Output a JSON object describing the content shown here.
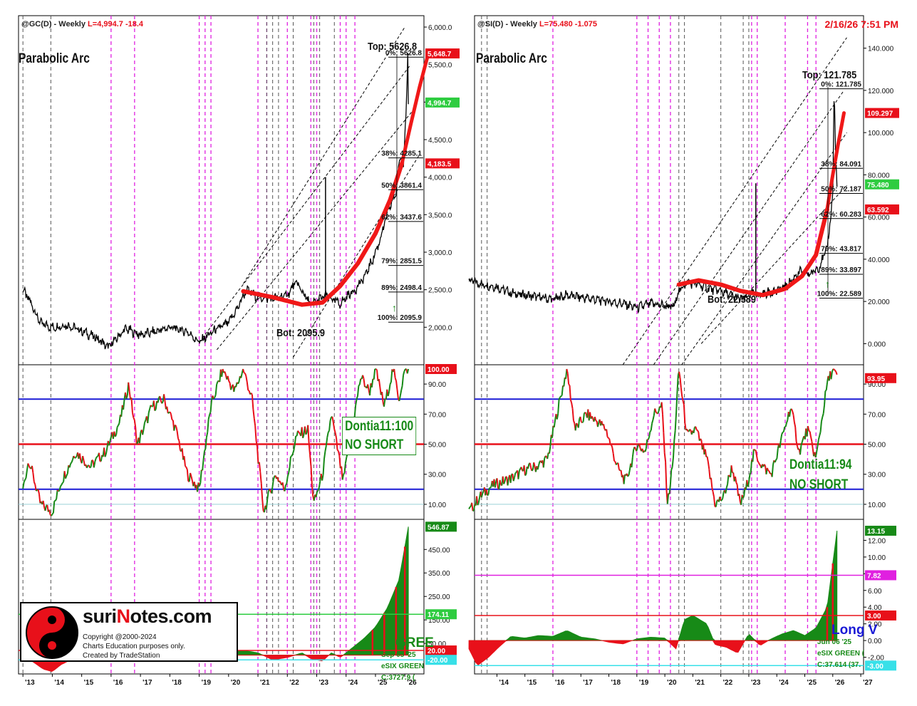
{
  "colors": {
    "up": "#178a17",
    "down": "#e8101a",
    "blue_line": "#1a1ad6",
    "pink_marker": "#e020e0",
    "gray_marker": "#555555",
    "arc": "#f01818"
  },
  "left": {
    "header": {
      "symbol": "@GC(D) - Weekly",
      "last": "L=4,994.7",
      "change": "-18.4"
    },
    "title": "Parabolic Arc",
    "top_label": "Top: 5626.8",
    "bot_label": "Bot: 2095.9",
    "oscillator_label": "Dontia11:100",
    "oscillator_note": "NO SHORT",
    "legend_lines": [
      "GREE",
      "Sep 05 '25",
      "eSIX GREEN",
      "C:3727.9 ("
    ]
  },
  "right": {
    "header": {
      "symbol": "@SI(D) - Weekly",
      "last": "L=75.480",
      "change": "-1.075"
    },
    "timestamp": "2/16/26 7:51 PM",
    "title": "Parabolic Arc",
    "top_label": "Top: 121.785",
    "bot_label": "Bot: 22.589",
    "oscillator_label": "Dontia11:94",
    "oscillator_note": "NO SHORT",
    "legend_lines": [
      "Long V",
      "Jun 06 '25",
      "eSIX GREEN (",
      "C:37.614 (37."
    ]
  },
  "logo": {
    "brand_prefix": "suri",
    "brand_accent": "N",
    "brand_suffix": "otes.com",
    "lines": [
      "Copyright @2000-2024",
      "Charts Education purposes only.",
      "Created by TradeStation"
    ]
  },
  "chart_data": [
    {
      "name": "Gold price pane",
      "type": "line",
      "ylim": [
        1500,
        6000
      ],
      "x_tick_labels": [
        "'13",
        "'14",
        "'15",
        "'16",
        "'17",
        "'18",
        "'19",
        "'20",
        "'21",
        "'22",
        "'23",
        "'24",
        "'25",
        "'26"
      ],
      "y_ticks": [
        "6,000.0",
        "5,500.0",
        "5,000.0",
        "4,500.0",
        "4,000.0",
        "3,500.0",
        "3,000.0",
        "2,500.0",
        "2,000.0"
      ],
      "price_tags": [
        {
          "label": "5,648.7",
          "value": 5648.7,
          "color": "#e8101a"
        },
        {
          "label": "4,994.7",
          "value": 4994.7,
          "color": "#2ecc40"
        },
        {
          "label": "4,183.5",
          "value": 4183.5,
          "color": "#e8101a"
        }
      ],
      "fib_levels": [
        {
          "label": "0%: 5626.8",
          "value": 5626.8
        },
        {
          "label": "38%: 4285.1",
          "value": 4285.1
        },
        {
          "label": "50%: 3861.4",
          "value": 3861.4
        },
        {
          "label": "62%: 3437.6",
          "value": 3437.6
        },
        {
          "label": "79%: 2851.5",
          "value": 2851.5
        },
        {
          "label": "89%: 2498.4",
          "value": 2498.4
        },
        {
          "label": "100%: 2095.9",
          "value": 2095.9
        }
      ],
      "price_points": [
        [
          2013.0,
          2500
        ],
        [
          2013.3,
          2300
        ],
        [
          2013.6,
          2050
        ],
        [
          2014.0,
          2000
        ],
        [
          2014.5,
          2030
        ],
        [
          2015.0,
          1950
        ],
        [
          2015.5,
          1860
        ],
        [
          2015.9,
          1730
        ],
        [
          2016.5,
          1980
        ],
        [
          2017.0,
          1900
        ],
        [
          2017.6,
          1950
        ],
        [
          2018.0,
          2000
        ],
        [
          2018.6,
          1940
        ],
        [
          2019.0,
          1800
        ],
        [
          2019.5,
          1950
        ],
        [
          2020.0,
          2060
        ],
        [
          2020.3,
          2250
        ],
        [
          2020.6,
          2500
        ],
        [
          2021.0,
          2400
        ],
        [
          2021.5,
          2380
        ],
        [
          2022.0,
          2430
        ],
        [
          2022.3,
          2600
        ],
        [
          2022.8,
          2300
        ],
        [
          2023.0,
          2350
        ],
        [
          2023.3,
          2420
        ],
        [
          2023.8,
          2310
        ],
        [
          2024.0,
          2400
        ],
        [
          2024.3,
          2500
        ],
        [
          2024.6,
          2650
        ],
        [
          2024.9,
          2900
        ],
        [
          2025.1,
          3100
        ],
        [
          2025.4,
          3500
        ],
        [
          2025.7,
          3800
        ],
        [
          2025.85,
          4300
        ],
        [
          2025.95,
          4150
        ],
        [
          2026.05,
          5000
        ],
        [
          2026.1,
          5626.8
        ],
        [
          2026.12,
          4995
        ]
      ],
      "arc_points": [
        [
          2020.5,
          2480
        ],
        [
          2021.5,
          2400
        ],
        [
          2022.5,
          2300
        ],
        [
          2023.2,
          2330
        ],
        [
          2023.8,
          2550
        ],
        [
          2024.4,
          2850
        ],
        [
          2025.0,
          3250
        ],
        [
          2025.5,
          3700
        ],
        [
          2025.9,
          4183.5
        ]
      ],
      "arc_projection": [
        [
          2025.9,
          4183.5
        ],
        [
          2026.2,
          4700
        ],
        [
          2026.5,
          5200
        ],
        [
          2026.8,
          5648.7
        ]
      ],
      "spike": [
        2023.3,
        2350,
        4000
      ]
    },
    {
      "name": "Gold Dontia11 oscillator",
      "type": "line",
      "ylim": [
        0,
        100
      ],
      "y_ticks": [
        "90.00",
        "70.00",
        "50.00",
        "30.00",
        "10.00"
      ],
      "levels": [
        80,
        50,
        20,
        10
      ],
      "last_tag": {
        "label": "100.00",
        "value": 100
      },
      "values": [
        [
          2013.0,
          20
        ],
        [
          2013.2,
          40
        ],
        [
          2013.6,
          10
        ],
        [
          2014.0,
          5
        ],
        [
          2014.3,
          25
        ],
        [
          2014.8,
          45
        ],
        [
          2015.3,
          35
        ],
        [
          2015.8,
          45
        ],
        [
          2016.3,
          65
        ],
        [
          2016.6,
          90
        ],
        [
          2016.9,
          50
        ],
        [
          2017.4,
          75
        ],
        [
          2017.8,
          80
        ],
        [
          2018.2,
          60
        ],
        [
          2018.6,
          30
        ],
        [
          2019.0,
          20
        ],
        [
          2019.4,
          75
        ],
        [
          2019.8,
          100
        ],
        [
          2020.2,
          85
        ],
        [
          2020.5,
          100
        ],
        [
          2020.8,
          80
        ],
        [
          2021.2,
          5
        ],
        [
          2021.6,
          30
        ],
        [
          2021.9,
          20
        ],
        [
          2022.3,
          55
        ],
        [
          2022.7,
          60
        ],
        [
          2022.9,
          10
        ],
        [
          2023.2,
          30
        ],
        [
          2023.5,
          70
        ],
        [
          2023.9,
          25
        ],
        [
          2024.2,
          60
        ],
        [
          2024.5,
          95
        ],
        [
          2024.8,
          85
        ],
        [
          2025.0,
          100
        ],
        [
          2025.3,
          75
        ],
        [
          2025.6,
          100
        ],
        [
          2025.8,
          80
        ],
        [
          2026.0,
          100
        ],
        [
          2026.12,
          100
        ]
      ]
    },
    {
      "name": "Gold histogram",
      "type": "area",
      "ylim": [
        -80,
        560
      ],
      "y_ticks": [
        "450.00",
        "350.00",
        "250.00",
        "150.00",
        "50.00"
      ],
      "tags": [
        {
          "label": "546.87",
          "value": 546.87,
          "color": "#178a17"
        },
        {
          "label": "174.11",
          "value": 174.11,
          "color": "#2ecc40"
        },
        {
          "label": "20.00",
          "value": 20,
          "color": "#e8101a"
        },
        {
          "label": "-20.00",
          "value": -20,
          "color": "#38e0e8"
        }
      ],
      "values": [
        [
          2013.0,
          -5
        ],
        [
          2013.3,
          -25
        ],
        [
          2013.7,
          -60
        ],
        [
          2014.0,
          -70
        ],
        [
          2014.3,
          -40
        ],
        [
          2014.8,
          -10
        ],
        [
          2015.5,
          -5
        ],
        [
          2016.0,
          5
        ],
        [
          2016.5,
          10
        ],
        [
          2017.0,
          8
        ],
        [
          2017.5,
          4
        ],
        [
          2018.0,
          -3
        ],
        [
          2018.5,
          -8
        ],
        [
          2019.0,
          -2
        ],
        [
          2019.5,
          6
        ],
        [
          2020.0,
          15
        ],
        [
          2020.5,
          20
        ],
        [
          2021.0,
          10
        ],
        [
          2021.5,
          -20
        ],
        [
          2022.0,
          -10
        ],
        [
          2022.5,
          10
        ],
        [
          2022.8,
          -15
        ],
        [
          2023.2,
          -25
        ],
        [
          2023.5,
          10
        ],
        [
          2023.8,
          -10
        ],
        [
          2024.2,
          30
        ],
        [
          2024.6,
          70
        ],
        [
          2025.0,
          120
        ],
        [
          2025.4,
          200
        ],
        [
          2025.8,
          320
        ],
        [
          2026.12,
          546.87
        ]
      ]
    },
    {
      "name": "Silver price pane",
      "type": "line",
      "ylim": [
        -10,
        150
      ],
      "x_tick_labels": [
        "'14",
        "'15",
        "'16",
        "'17",
        "'18",
        "'19",
        "'20",
        "'21",
        "'22",
        "'23",
        "'24",
        "'25",
        "'26",
        "'27"
      ],
      "y_ticks": [
        "140.000",
        "120.000",
        "100.000",
        "80.000",
        "60.000",
        "40.000",
        "20.000",
        "0.000"
      ],
      "price_tags": [
        {
          "label": "109.297",
          "value": 109.297,
          "color": "#e8101a"
        },
        {
          "label": "75.480",
          "value": 75.48,
          "color": "#2ecc40"
        },
        {
          "label": "63.592",
          "value": 63.592,
          "color": "#e8101a"
        }
      ],
      "fib_levels": [
        {
          "label": "0%: 121.785",
          "value": 121.785
        },
        {
          "label": "38%: 84.091",
          "value": 84.091
        },
        {
          "label": "50%: 72.187",
          "value": 72.187
        },
        {
          "label": "62%: 60.283",
          "value": 60.283
        },
        {
          "label": "79%: 43.817",
          "value": 43.817
        },
        {
          "label": "89%: 33.897",
          "value": 33.897
        },
        {
          "label": "100%: 22.589",
          "value": 22.589
        }
      ],
      "price_points": [
        [
          2013.0,
          30
        ],
        [
          2013.5,
          28
        ],
        [
          2014.0,
          27
        ],
        [
          2014.5,
          24
        ],
        [
          2015.0,
          23
        ],
        [
          2015.5,
          22
        ],
        [
          2016.0,
          21
        ],
        [
          2016.5,
          23
        ],
        [
          2017.0,
          22
        ],
        [
          2017.5,
          21
        ],
        [
          2018.0,
          20
        ],
        [
          2018.5,
          19
        ],
        [
          2019.0,
          17
        ],
        [
          2019.5,
          19
        ],
        [
          2020.0,
          18
        ],
        [
          2020.3,
          17
        ],
        [
          2020.5,
          25
        ],
        [
          2020.8,
          29
        ],
        [
          2021.2,
          28
        ],
        [
          2021.6,
          26
        ],
        [
          2022.0,
          25
        ],
        [
          2022.5,
          22
        ],
        [
          2022.8,
          21
        ],
        [
          2023.0,
          24
        ],
        [
          2023.3,
          23
        ],
        [
          2023.6,
          24
        ],
        [
          2024.0,
          25
        ],
        [
          2024.4,
          28
        ],
        [
          2024.8,
          34
        ],
        [
          2025.2,
          33
        ],
        [
          2025.5,
          36
        ],
        [
          2025.8,
          45
        ],
        [
          2026.0,
          70
        ],
        [
          2026.05,
          121.785
        ],
        [
          2026.1,
          90
        ],
        [
          2026.15,
          75.48
        ]
      ],
      "arc_points": [
        [
          2020.5,
          28
        ],
        [
          2021.2,
          30
        ],
        [
          2022.0,
          28
        ],
        [
          2022.7,
          25
        ],
        [
          2023.5,
          23
        ],
        [
          2024.3,
          26
        ],
        [
          2024.9,
          32
        ],
        [
          2025.4,
          42
        ],
        [
          2025.8,
          63.592
        ]
      ],
      "arc_projection": [
        [
          2025.8,
          63.592
        ],
        [
          2026.0,
          80
        ],
        [
          2026.2,
          95
        ],
        [
          2026.4,
          109.297
        ]
      ],
      "spike": [
        2023.25,
        24,
        76
      ]
    },
    {
      "name": "Silver Dontia11 oscillator",
      "type": "line",
      "ylim": [
        0,
        100
      ],
      "y_ticks": [
        "90.00",
        "70.00",
        "50.00",
        "30.00",
        "10.00"
      ],
      "levels": [
        80,
        50,
        20,
        10
      ],
      "last_tag": {
        "label": "93.95",
        "value": 93.95
      },
      "values": [
        [
          2013.0,
          5
        ],
        [
          2013.4,
          15
        ],
        [
          2013.8,
          22
        ],
        [
          2014.2,
          25
        ],
        [
          2014.6,
          28
        ],
        [
          2015.0,
          33
        ],
        [
          2015.4,
          35
        ],
        [
          2015.8,
          40
        ],
        [
          2016.2,
          75
        ],
        [
          2016.5,
          100
        ],
        [
          2016.8,
          60
        ],
        [
          2017.2,
          70
        ],
        [
          2017.6,
          65
        ],
        [
          2017.9,
          60
        ],
        [
          2018.3,
          35
        ],
        [
          2018.6,
          25
        ],
        [
          2019.0,
          50
        ],
        [
          2019.3,
          45
        ],
        [
          2019.6,
          70
        ],
        [
          2019.9,
          75
        ],
        [
          2020.1,
          10
        ],
        [
          2020.3,
          40
        ],
        [
          2020.5,
          100
        ],
        [
          2020.8,
          55
        ],
        [
          2021.1,
          60
        ],
        [
          2021.5,
          40
        ],
        [
          2021.8,
          10
        ],
        [
          2022.1,
          15
        ],
        [
          2022.4,
          35
        ],
        [
          2022.7,
          10
        ],
        [
          2022.9,
          20
        ],
        [
          2023.2,
          45
        ],
        [
          2023.5,
          35
        ],
        [
          2023.8,
          30
        ],
        [
          2024.2,
          55
        ],
        [
          2024.5,
          75
        ],
        [
          2024.8,
          45
        ],
        [
          2025.1,
          60
        ],
        [
          2025.4,
          40
        ],
        [
          2025.8,
          90
        ],
        [
          2026.0,
          100
        ],
        [
          2026.15,
          93.95
        ]
      ]
    },
    {
      "name": "Silver histogram",
      "type": "area",
      "ylim": [
        -4,
        14
      ],
      "y_ticks": [
        "12.00",
        "10.00",
        "8.00",
        "6.00",
        "4.00",
        "2.00",
        "0.00",
        "-2.00"
      ],
      "tags": [
        {
          "label": "13.15",
          "value": 13.15,
          "color": "#178a17"
        },
        {
          "label": "7.82",
          "value": 7.82,
          "color": "#e020e0"
        },
        {
          "label": "3.00",
          "value": 3,
          "color": "#e8101a"
        },
        {
          "label": "-3.00",
          "value": -3,
          "color": "#38e0e8"
        }
      ],
      "values": [
        [
          2013.0,
          -1
        ],
        [
          2013.3,
          -3
        ],
        [
          2013.7,
          -2
        ],
        [
          2014.0,
          -1
        ],
        [
          2014.5,
          0.5
        ],
        [
          2015.0,
          0.3
        ],
        [
          2015.5,
          0.6
        ],
        [
          2016.0,
          0.5
        ],
        [
          2016.5,
          1.2
        ],
        [
          2017.0,
          0.4
        ],
        [
          2017.5,
          0.2
        ],
        [
          2018.0,
          -0.2
        ],
        [
          2018.5,
          -0.4
        ],
        [
          2019.0,
          0.2
        ],
        [
          2019.5,
          0.4
        ],
        [
          2020.0,
          0.3
        ],
        [
          2020.4,
          -1
        ],
        [
          2020.7,
          2.5
        ],
        [
          2021.0,
          3
        ],
        [
          2021.5,
          2
        ],
        [
          2021.8,
          -0.5
        ],
        [
          2022.2,
          -0.8
        ],
        [
          2022.6,
          -1.5
        ],
        [
          2023.0,
          0.8
        ],
        [
          2023.4,
          -0.6
        ],
        [
          2023.8,
          0.2
        ],
        [
          2024.2,
          0.8
        ],
        [
          2024.6,
          1.2
        ],
        [
          2025.0,
          0.6
        ],
        [
          2025.4,
          1.5
        ],
        [
          2025.8,
          4
        ],
        [
          2026.15,
          13.15
        ]
      ]
    }
  ]
}
